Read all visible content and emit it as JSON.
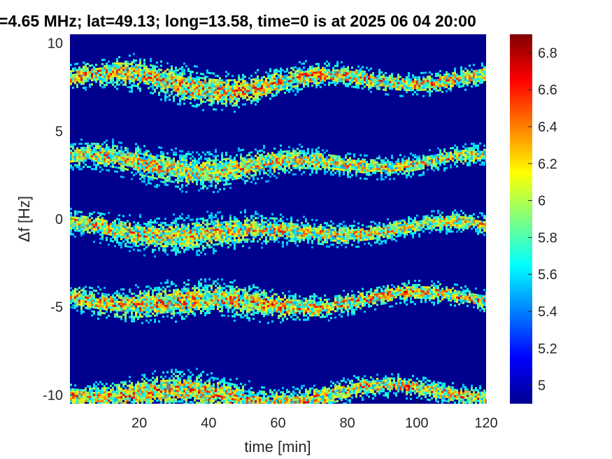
{
  "chart_data": {
    "type": "heatmap",
    "title": "=4.65 MHz;  lat=49.13; long=13.58, time=0 is at 2025 06 04 20:00",
    "xlabel": "time [min]",
    "ylabel": "Δf [Hz]",
    "xlim": [
      0,
      120
    ],
    "ylim": [
      -10.5,
      10.5
    ],
    "x_ticks": [
      20,
      40,
      60,
      80,
      100,
      120
    ],
    "x_tick_labels": [
      "20",
      "40",
      "60",
      "80",
      "100",
      "120"
    ],
    "y_ticks": [
      10,
      5,
      0,
      -5,
      -10
    ],
    "y_tick_labels": [
      "10",
      "5",
      "0",
      "-5",
      "-10"
    ],
    "colormap": "jet",
    "clim": [
      4.9,
      6.9
    ],
    "colorbar_ticks": [
      6.8,
      6.6,
      6.4,
      6.2,
      6,
      5.8,
      5.6,
      5.4,
      5.2,
      5
    ],
    "colorbar_tick_labels": [
      "6.8",
      "6.6",
      "6.4",
      "6.2",
      "6",
      "5.8",
      "5.6",
      "5.4",
      "5.2",
      "5"
    ],
    "grid": false,
    "bands": [
      {
        "center_hz": 8.0,
        "level": 6.6
      },
      {
        "center_hz": 3.3,
        "level": 6.5
      },
      {
        "center_hz": -0.5,
        "level": 6.5
      },
      {
        "center_hz": -4.5,
        "level": 6.6
      },
      {
        "center_hz": -9.8,
        "level": 6.6
      }
    ],
    "background_level": 4.95
  }
}
